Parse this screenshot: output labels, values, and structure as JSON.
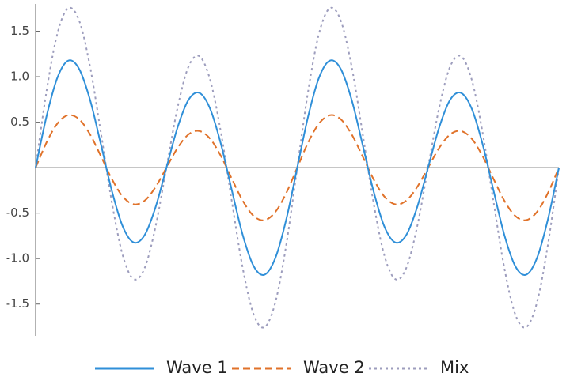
{
  "chart_data": {
    "type": "line",
    "x": [
      0,
      1,
      2,
      3,
      4,
      5,
      6,
      7,
      8,
      9,
      10,
      11,
      12,
      13,
      14,
      15,
      16,
      17,
      18,
      19,
      20,
      21,
      22,
      23,
      24,
      25,
      26,
      27,
      28,
      29,
      30,
      31,
      32,
      33,
      34,
      35,
      36,
      37,
      38,
      39,
      40,
      41,
      42,
      43,
      44,
      45,
      46,
      47,
      48
    ],
    "xlim": [
      0,
      48
    ],
    "ylim": [
      -1.85,
      1.8
    ],
    "yticks": [
      -1.5,
      {
        "value": -1,
        "label": "-1.0"
      },
      -0.5,
      0.5,
      {
        "value": 1,
        "label": "1.0"
      },
      1.5
    ],
    "legend": "bottom",
    "series": [
      {
        "name": "Wave 1",
        "color": "#2f8fd8",
        "dash": "solid",
        "values": [
          0,
          0.565,
          0.991,
          1.177,
          1.083,
          0.742,
          0.25,
          -0.259,
          -0.65,
          -0.823,
          -0.741,
          -0.435,
          0,
          0.435,
          0.741,
          0.823,
          0.65,
          0.259,
          -0.25,
          -0.742,
          -1.083,
          -1.177,
          -0.991,
          -0.565,
          0,
          0.565,
          0.991,
          1.177,
          1.083,
          0.742,
          0.25,
          -0.259,
          -0.65,
          -0.823,
          -0.741,
          -0.435,
          0,
          0.435,
          0.741,
          0.823,
          0.65,
          0.259,
          -0.25,
          -0.742,
          -1.083,
          -1.177,
          -0.991,
          -0.565,
          0
        ]
      },
      {
        "name": "Wave 2",
        "color": "#e0722a",
        "dash": "dashed",
        "values": [
          0,
          0.277,
          0.486,
          0.577,
          0.531,
          0.364,
          0.123,
          -0.127,
          -0.319,
          -0.403,
          -0.363,
          -0.213,
          0,
          0.213,
          0.363,
          0.403,
          0.319,
          0.127,
          -0.123,
          -0.364,
          -0.531,
          -0.577,
          -0.486,
          -0.277,
          0,
          0.277,
          0.486,
          0.577,
          0.531,
          0.364,
          0.123,
          -0.127,
          -0.319,
          -0.403,
          -0.363,
          -0.213,
          0,
          0.213,
          0.363,
          0.403,
          0.319,
          0.127,
          -0.123,
          -0.364,
          -0.531,
          -0.577,
          -0.486,
          -0.277,
          0
        ]
      },
      {
        "name": "Mix",
        "color": "#9d9dbd",
        "dash": "dotted",
        "values": [
          0,
          0.842,
          1.477,
          1.754,
          1.614,
          1.106,
          0.373,
          -0.386,
          -0.969,
          -1.226,
          -1.104,
          -0.648,
          0,
          0.648,
          1.104,
          1.226,
          0.969,
          0.386,
          -0.373,
          -1.106,
          -1.614,
          -1.754,
          -1.477,
          -0.842,
          0,
          0.842,
          1.477,
          1.754,
          1.614,
          1.106,
          0.373,
          -0.386,
          -0.969,
          -1.226,
          -1.104,
          -0.648,
          0,
          0.648,
          1.104,
          1.226,
          0.969,
          0.386,
          -0.373,
          -1.106,
          -1.614,
          -1.754,
          -1.477,
          -0.842,
          0
        ]
      }
    ]
  }
}
